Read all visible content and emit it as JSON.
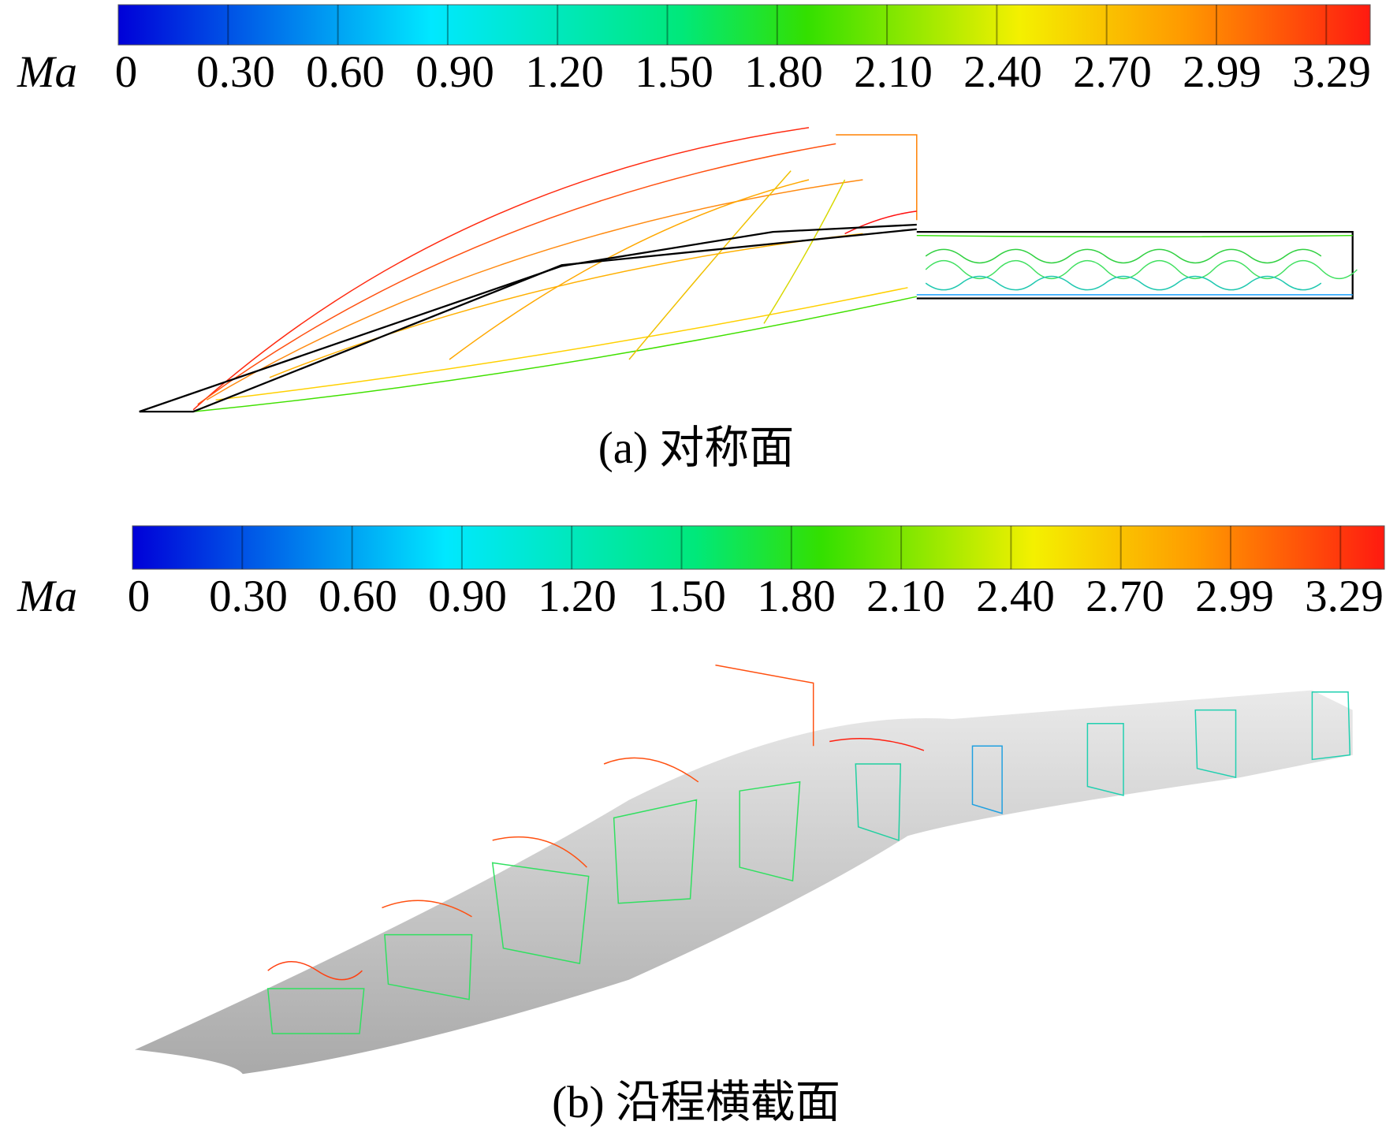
{
  "panels": [
    {
      "colorbar": {
        "label": "Ma",
        "ticks": [
          "0",
          "0.30",
          "0.60",
          "0.90",
          "1.20",
          "1.50",
          "1.80",
          "2.10",
          "2.40",
          "2.70",
          "2.99",
          "3.29"
        ]
      },
      "caption": "(a) 对称面"
    },
    {
      "colorbar": {
        "label": "Ma",
        "ticks": [
          "0",
          "0.30",
          "0.60",
          "0.90",
          "1.20",
          "1.50",
          "1.80",
          "2.10",
          "2.40",
          "2.70",
          "2.99",
          "3.29"
        ]
      },
      "caption": "(b) 沿程横截面"
    }
  ]
}
